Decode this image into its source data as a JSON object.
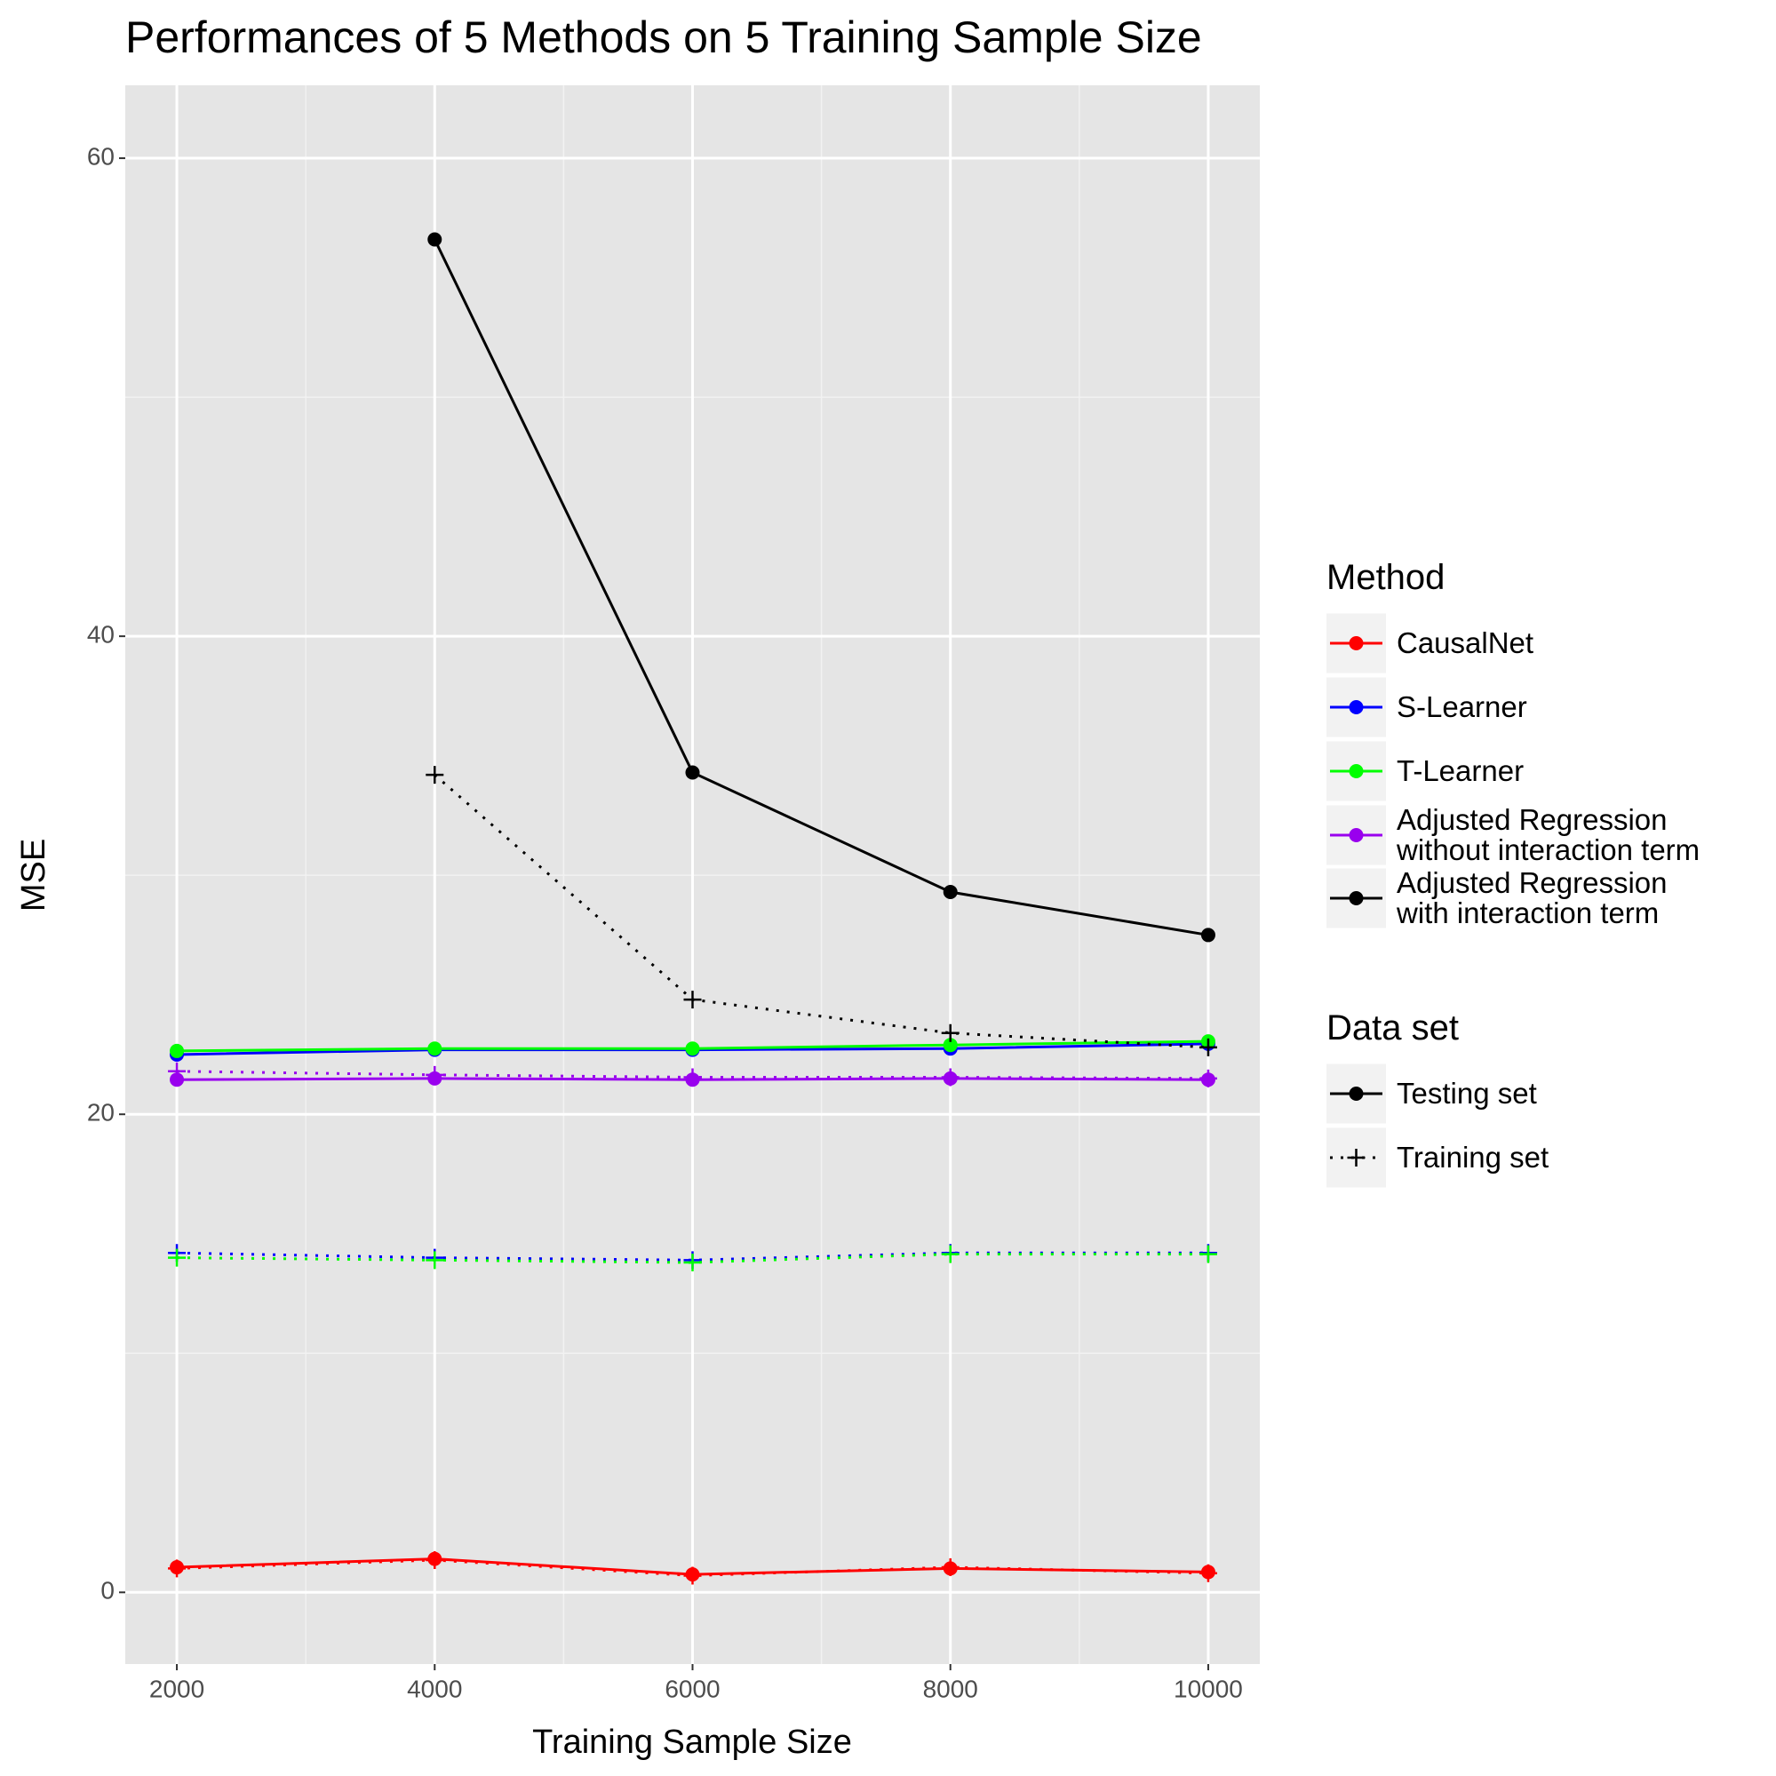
{
  "chart_data": {
    "type": "line",
    "title": "Performances of 5 Methods on 5 Training Sample Size",
    "x_label": "Training Sample Size",
    "y_label": "MSE",
    "x": [
      2000,
      4000,
      6000,
      8000,
      10000
    ],
    "xlim": [
      1600,
      10400
    ],
    "xticks": [
      2000,
      4000,
      6000,
      8000,
      10000
    ],
    "xminor_ticks": [
      3000,
      5000,
      7000,
      9000
    ],
    "ylim": [
      -3,
      63.05
    ],
    "yticks": [
      0,
      20,
      40,
      60
    ],
    "yminor_ticks": [
      10,
      30,
      50
    ],
    "grid": true,
    "legend_position": "right",
    "legend_method_title": "Method",
    "legend_dataset_title": "Data set",
    "datasets": [
      "Testing set",
      "Training set"
    ],
    "series": [
      {
        "name": "CausalNet",
        "color": "#ff0000",
        "values": [
          1.05,
          1.4,
          0.75,
          1.0,
          0.85
        ],
        "training_values": [
          1.0,
          1.35,
          0.7,
          1.05,
          0.8
        ]
      },
      {
        "name": "S-Learner",
        "color": "#0000ff",
        "values": [
          22.5,
          22.7,
          22.7,
          22.75,
          22.95
        ],
        "training_values": [
          14.2,
          14.0,
          13.9,
          14.2,
          14.2
        ]
      },
      {
        "name": "T-Learner",
        "color": "#00ff00",
        "values": [
          22.65,
          22.75,
          22.75,
          22.9,
          23.05
        ],
        "training_values": [
          14.0,
          13.9,
          13.8,
          14.15,
          14.15
        ]
      },
      {
        "name": "Adjusted Regression\n without interaction term",
        "color": "#9900ee",
        "values": [
          21.45,
          21.5,
          21.45,
          21.5,
          21.45
        ],
        "training_values": [
          21.8,
          21.65,
          21.55,
          21.55,
          21.5
        ]
      },
      {
        "name": "Adjusted Regression\n with interaction term",
        "color": "#000000",
        "values": [
          null,
          56.6,
          34.3,
          29.3,
          27.5
        ],
        "training_values": [
          null,
          34.2,
          24.8,
          23.4,
          22.8
        ]
      }
    ]
  }
}
